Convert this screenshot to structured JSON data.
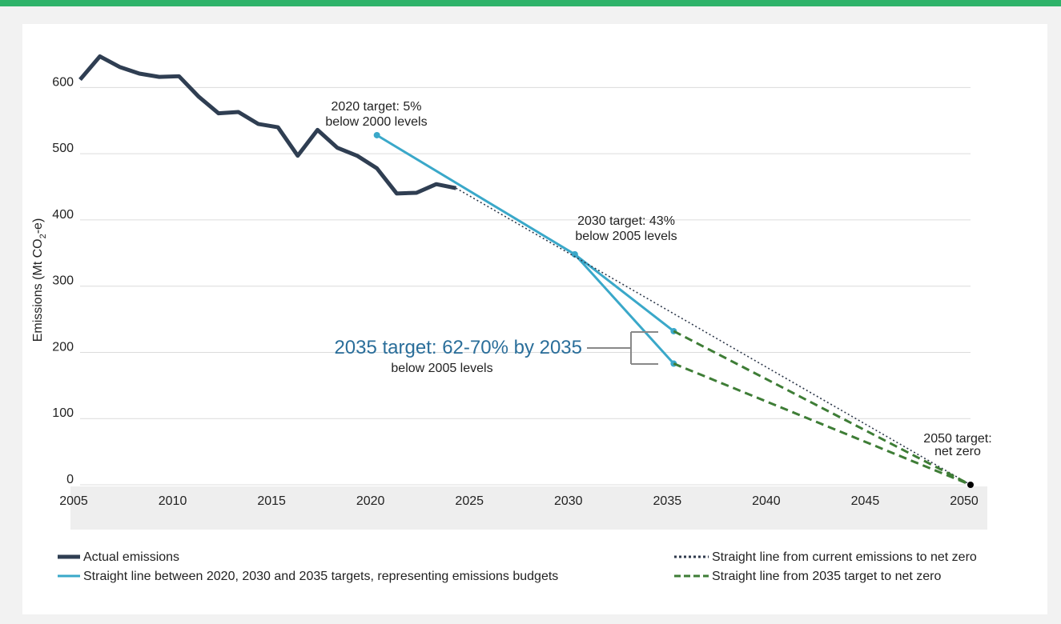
{
  "chart_data": {
    "type": "line",
    "ylabel": [
      "Emissions (Mt CO",
      "2",
      "-e)"
    ],
    "xlim": [
      2005,
      2050
    ],
    "xticks": [
      2005,
      2010,
      2015,
      2020,
      2025,
      2030,
      2035,
      2040,
      2045,
      2050
    ],
    "ylim": [
      0,
      650
    ],
    "yticks": [
      0,
      100,
      200,
      300,
      400,
      500,
      600
    ],
    "grid": true,
    "series": [
      {
        "name": "Actual emissions",
        "color": "#2f3e52",
        "width": 5,
        "x": [
          2005,
          2006,
          2007,
          2008,
          2009,
          2010,
          2011,
          2012,
          2013,
          2014,
          2015,
          2016,
          2017,
          2018,
          2019,
          2020,
          2021,
          2022,
          2023,
          2024
        ],
        "values": [
          612,
          647,
          631,
          621,
          616,
          617,
          586,
          561,
          563,
          545,
          540,
          497,
          536,
          509,
          497,
          478,
          440,
          441,
          454,
          448
        ]
      },
      {
        "name": "Straight line between 2020, 2030 and 2035 targets, representing emissions budgets",
        "color": "#3aa8c9",
        "width": 3,
        "marker_color": "#3aa8c9",
        "x": [
          2020,
          2030,
          2035,
          null,
          2030,
          2035
        ],
        "values": [
          528,
          348,
          232,
          null,
          348,
          183
        ]
      },
      {
        "name": "Straight line from current emissions to net zero",
        "color": "#2f3a4c",
        "width": 1.6,
        "dash": "2 3",
        "x": [
          2024,
          2050
        ],
        "values": [
          448,
          0
        ]
      },
      {
        "name": "Straight line from 2035 target to net zero",
        "color": "#3e7d36",
        "width": 3,
        "dash": "10 6",
        "x": [
          2035,
          2050,
          null,
          2035,
          2050
        ],
        "values": [
          232,
          0,
          null,
          183,
          0
        ]
      }
    ],
    "net_zero_point": {
      "x": 2050,
      "value": 0,
      "color": "#000000"
    },
    "annotations": [
      [
        "2020 target: 5%",
        "below 2000 levels"
      ],
      [
        "2030 target: 43%",
        "below 2005 levels"
      ],
      [
        "2035 target: 62-70% by 2035",
        "below 2005 levels"
      ],
      [
        "2050 target:",
        "net zero"
      ]
    ]
  }
}
